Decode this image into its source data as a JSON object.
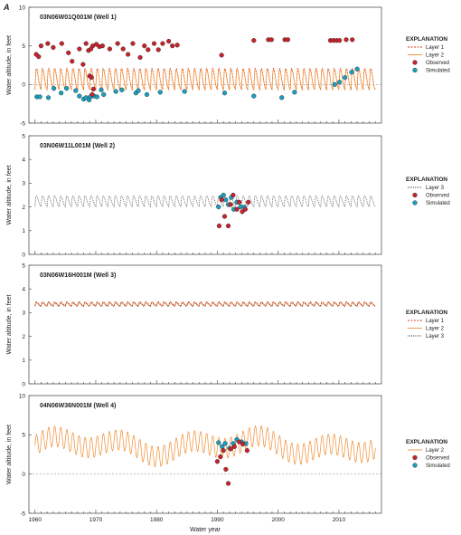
{
  "figure_label": "A",
  "colors": {
    "layer1": "#d73a1d",
    "layer2": "#f08c30",
    "layer3": "#404040",
    "observed": "#c8232b",
    "simulated": "#1a9fbf",
    "marker_edge": "#222222"
  },
  "chart_data": [
    {
      "type": "line",
      "title": "03N06W01Q001M (Well 1)",
      "xlabel": "",
      "ylabel": "Water altitude, in feet",
      "xlim": [
        1959,
        2017
      ],
      "ylim": [
        -5,
        10
      ],
      "y_ticks": [
        "-5",
        "0",
        "5",
        "10"
      ],
      "grid": false,
      "zero_line": true,
      "legend_position": "right",
      "legend_title": "EXPLANATION",
      "legend": [
        {
          "kind": "line-dashed",
          "color_key": "layer1",
          "label": "Layer 1"
        },
        {
          "kind": "line-solid",
          "color_key": "layer2",
          "label": "Layer 2"
        },
        {
          "kind": "marker",
          "color_key": "observed",
          "label": "Observed"
        },
        {
          "kind": "marker",
          "color_key": "simulated",
          "label": "Simulated"
        }
      ],
      "series": [
        {
          "name": "Layer 1",
          "style": "seasonal",
          "color_key": "layer1",
          "dash": "2,1.5",
          "base": 0.5,
          "amp": 2.3,
          "start": 1960,
          "end": 2016
        },
        {
          "name": "Layer 2",
          "style": "seasonal",
          "color_key": "layer2",
          "dash": "",
          "base": 0.4,
          "amp": 2.2,
          "start": 1960,
          "end": 2016
        }
      ],
      "observed": [
        [
          1960.2,
          3.9
        ],
        [
          1960.6,
          3.6
        ],
        [
          1961.0,
          5.0
        ],
        [
          1962.1,
          5.3
        ],
        [
          1963.0,
          4.8
        ],
        [
          1964.4,
          5.3
        ],
        [
          1965.5,
          4.1
        ],
        [
          1966.1,
          3.0
        ],
        [
          1967.3,
          4.6
        ],
        [
          1967.9,
          2.6
        ],
        [
          1968.4,
          5.3
        ],
        [
          1968.8,
          4.4
        ],
        [
          1969.0,
          1.1
        ],
        [
          1969.3,
          0.9
        ],
        [
          1969.5,
          5.0
        ],
        [
          1969.2,
          4.6
        ],
        [
          1969.6,
          -0.6
        ],
        [
          1969.4,
          -1.3
        ],
        [
          1970.1,
          5.2
        ],
        [
          1970.6,
          4.9
        ],
        [
          1971.1,
          5.0
        ],
        [
          1972.3,
          4.6
        ],
        [
          1973.6,
          5.3
        ],
        [
          1974.5,
          4.6
        ],
        [
          1975.3,
          3.9
        ],
        [
          1976.1,
          5.3
        ],
        [
          1977.3,
          3.5
        ],
        [
          1978.0,
          5.0
        ],
        [
          1978.6,
          4.5
        ],
        [
          1979.6,
          5.3
        ],
        [
          1980.3,
          4.5
        ],
        [
          1981.0,
          5.3
        ],
        [
          1982.0,
          5.6
        ],
        [
          1982.6,
          5.0
        ],
        [
          1983.4,
          5.1
        ],
        [
          1990.7,
          3.8
        ],
        [
          1996.0,
          5.7
        ],
        [
          1998.4,
          5.8
        ],
        [
          1998.9,
          5.8
        ],
        [
          2001.1,
          5.8
        ],
        [
          2001.6,
          5.8
        ],
        [
          2008.6,
          5.7
        ],
        [
          2009.1,
          5.7
        ],
        [
          2009.6,
          5.7
        ],
        [
          2010.1,
          5.7
        ],
        [
          2011.2,
          5.8
        ],
        [
          2012.2,
          5.8
        ]
      ],
      "simulated": [
        [
          1960.3,
          -1.6
        ],
        [
          1960.8,
          -1.6
        ],
        [
          1962.2,
          -1.7
        ],
        [
          1963.1,
          -0.5
        ],
        [
          1964.3,
          -1.1
        ],
        [
          1965.2,
          -0.5
        ],
        [
          1966.7,
          -0.8
        ],
        [
          1967.3,
          -1.5
        ],
        [
          1968.0,
          -1.9
        ],
        [
          1968.4,
          -1.7
        ],
        [
          1968.9,
          -2.0
        ],
        [
          1969.1,
          -1.6
        ],
        [
          1969.7,
          -1.5
        ],
        [
          1970.2,
          -1.6
        ],
        [
          1970.9,
          -0.7
        ],
        [
          1971.3,
          -1.3
        ],
        [
          1973.3,
          -0.9
        ],
        [
          1974.3,
          -0.7
        ],
        [
          1976.6,
          -1.1
        ],
        [
          1977.0,
          -0.8
        ],
        [
          1978.4,
          -1.3
        ],
        [
          1980.6,
          -1.0
        ],
        [
          1984.6,
          -0.9
        ],
        [
          1991.2,
          -1.1
        ],
        [
          1996.0,
          -1.5
        ],
        [
          2000.6,
          -1.7
        ],
        [
          2002.7,
          -1.0
        ],
        [
          2009.3,
          0.0
        ],
        [
          2010.1,
          0.3
        ],
        [
          2011.0,
          0.9
        ],
        [
          2012.1,
          1.6
        ],
        [
          2013.0,
          2.0
        ]
      ]
    },
    {
      "type": "line",
      "title": "03N06W11L001M (Well 2)",
      "xlabel": "",
      "ylabel": "Water altitude, in feet",
      "xlim": [
        1959,
        2017
      ],
      "ylim": [
        0,
        5
      ],
      "y_ticks": [
        "0",
        "1",
        "2",
        "3",
        "4",
        "5"
      ],
      "grid": false,
      "zero_line": false,
      "legend_position": "right",
      "legend_title": "EXPLANATION",
      "legend": [
        {
          "kind": "line-dotted",
          "color_key": "layer3",
          "label": "Layer 3"
        },
        {
          "kind": "marker",
          "color_key": "observed",
          "label": "Observed"
        },
        {
          "kind": "marker",
          "color_key": "simulated",
          "label": "Simulated"
        }
      ],
      "series": [
        {
          "name": "Layer 3",
          "style": "seasonal",
          "color_key": "layer3",
          "dash": "1,1",
          "base": 2.2,
          "amp": 0.38,
          "start": 1960,
          "end": 2016
        }
      ],
      "observed": [
        [
          1990.3,
          1.2
        ],
        [
          1990.7,
          2.3
        ],
        [
          1991.2,
          1.6
        ],
        [
          1991.8,
          1.2
        ],
        [
          1992.2,
          2.1
        ],
        [
          1992.6,
          2.5
        ],
        [
          1993.2,
          1.9
        ],
        [
          1993.6,
          2.2
        ],
        [
          1994.1,
          1.8
        ],
        [
          1994.6,
          1.9
        ],
        [
          1995.1,
          2.2
        ]
      ],
      "simulated": [
        [
          1990.2,
          2.0
        ],
        [
          1990.6,
          2.4
        ],
        [
          1991.0,
          2.5
        ],
        [
          1991.4,
          2.3
        ],
        [
          1991.8,
          2.1
        ],
        [
          1992.3,
          2.4
        ],
        [
          1992.7,
          1.9
        ],
        [
          1993.2,
          2.2
        ],
        [
          1993.8,
          2.0
        ],
        [
          1994.4,
          2.0
        ]
      ]
    },
    {
      "type": "line",
      "title": "03N06W16H001M (Well 3)",
      "xlabel": "",
      "ylabel": "Water altitude, in feet",
      "xlim": [
        1959,
        2017
      ],
      "ylim": [
        0,
        5
      ],
      "y_ticks": [
        "0",
        "1",
        "2",
        "3",
        "4",
        "5"
      ],
      "grid": false,
      "zero_line": false,
      "legend_position": "right",
      "legend_title": "EXPLANATION",
      "legend": [
        {
          "kind": "line-dashed",
          "color_key": "layer1",
          "label": "Layer 1"
        },
        {
          "kind": "line-solid",
          "color_key": "layer2",
          "label": "Layer 2"
        },
        {
          "kind": "line-dotted",
          "color_key": "layer3",
          "label": "Layer 3"
        }
      ],
      "series": [
        {
          "name": "Layer 3",
          "style": "seasonal",
          "color_key": "layer3",
          "dash": "1,1",
          "base": 3.32,
          "amp": 0.12,
          "start": 1960,
          "end": 2016
        },
        {
          "name": "Layer 2",
          "style": "seasonal",
          "color_key": "layer2",
          "dash": "",
          "base": 3.35,
          "amp": 0.13,
          "start": 1960,
          "end": 2016
        },
        {
          "name": "Layer 1",
          "style": "seasonal",
          "color_key": "layer1",
          "dash": "2,1.5",
          "base": 3.36,
          "amp": 0.14,
          "start": 1960,
          "end": 2016
        }
      ],
      "observed": [],
      "simulated": []
    },
    {
      "type": "line",
      "title": "04N06W36N001M (Well 4)",
      "xlabel": "Water year",
      "ylabel": "Water altitude, in feet",
      "xlim": [
        1959,
        2017
      ],
      "ylim": [
        -5,
        10
      ],
      "y_ticks": [
        "-5",
        "0",
        "5",
        "10"
      ],
      "x_ticks": [
        "1960",
        "1970",
        "1980",
        "1990",
        "2000",
        "2010"
      ],
      "grid": false,
      "zero_line": true,
      "legend_position": "right",
      "legend_title": "EXPLANATION",
      "legend": [
        {
          "kind": "line-solid",
          "color_key": "layer2",
          "label": "Layer 2"
        },
        {
          "kind": "marker",
          "color_key": "observed",
          "label": "Observed"
        },
        {
          "kind": "marker",
          "color_key": "simulated",
          "label": "Simulated"
        }
      ],
      "series": [
        {
          "name": "Layer 2",
          "style": "seasonal-drift",
          "color_key": "layer2",
          "dash": "",
          "base": 3.6,
          "amp": 1.3,
          "start": 1960,
          "end": 2016
        }
      ],
      "observed": [
        [
          1990.0,
          1.6
        ],
        [
          1990.5,
          2.2
        ],
        [
          1991.0,
          3.0
        ],
        [
          1991.4,
          0.6
        ],
        [
          1991.8,
          -1.2
        ],
        [
          1992.2,
          3.2
        ],
        [
          1992.8,
          3.5
        ],
        [
          1993.6,
          4.1
        ],
        [
          1994.2,
          3.8
        ],
        [
          1994.9,
          3.0
        ]
      ],
      "simulated": [
        [
          1990.2,
          4.0
        ],
        [
          1990.8,
          3.5
        ],
        [
          1991.3,
          3.9
        ],
        [
          1992.0,
          3.3
        ],
        [
          1992.6,
          3.9
        ],
        [
          1993.2,
          4.4
        ],
        [
          1994.0,
          4.1
        ],
        [
          1994.7,
          3.9
        ]
      ]
    }
  ]
}
